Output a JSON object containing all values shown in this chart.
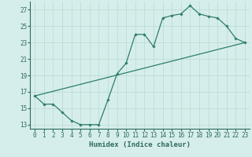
{
  "line1_x": [
    0,
    1,
    2,
    3,
    4,
    5,
    6,
    7,
    8,
    9,
    10,
    11,
    12,
    13,
    14,
    15,
    16,
    17,
    18,
    19,
    20,
    21,
    22,
    23
  ],
  "line1_y": [
    16.5,
    15.5,
    15.5,
    14.5,
    13.5,
    13.0,
    13.0,
    13.0,
    16.0,
    19.2,
    20.5,
    24.0,
    24.0,
    22.5,
    26.0,
    26.3,
    26.5,
    27.5,
    26.5,
    26.2,
    26.0,
    25.0,
    23.5,
    23.0
  ],
  "line2_x": [
    0,
    23
  ],
  "line2_y": [
    16.5,
    23.0
  ],
  "line_color": "#2d7d6e",
  "marker": "D",
  "marker_size": 1.8,
  "line_width": 0.9,
  "xlabel": "Humidex (Indice chaleur)",
  "ylabel": "",
  "xlim": [
    -0.5,
    23.5
  ],
  "ylim": [
    12.5,
    28.0
  ],
  "yticks": [
    13,
    15,
    17,
    19,
    21,
    23,
    25,
    27
  ],
  "xticks": [
    0,
    1,
    2,
    3,
    4,
    5,
    6,
    7,
    8,
    9,
    10,
    11,
    12,
    13,
    14,
    15,
    16,
    17,
    18,
    19,
    20,
    21,
    22,
    23
  ],
  "background_color": "#d6eeeb",
  "grid_color": "#b5d9d4",
  "label_fontsize": 6.5,
  "tick_fontsize": 5.5
}
